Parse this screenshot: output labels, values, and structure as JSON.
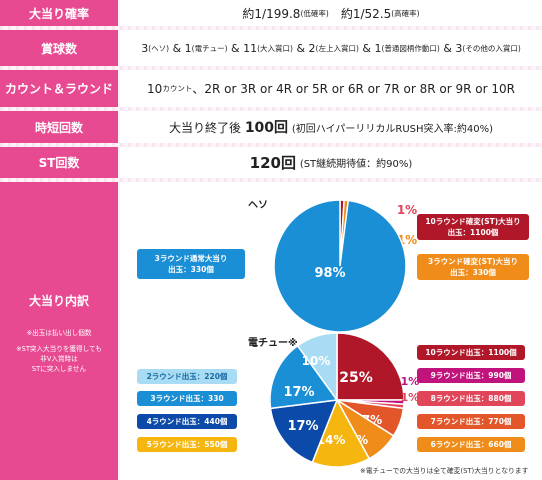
{
  "rows": [
    {
      "label": "大当り確率",
      "low_value": "約1/199.8",
      "low_note": "(低確率)",
      "high_value": "約1/52.5",
      "high_note": "(高確率)"
    },
    {
      "label": "賞球数",
      "p1n": "3",
      "p1t": "(ヘソ)",
      "p2n": "1",
      "p2t": "(電チュー)",
      "p3n": "11",
      "p3t": "(大入賞口)",
      "p4n": "2",
      "p4t": "(左上入賞口)",
      "p5n": "1",
      "p5t": "(普通図柄作動口)",
      "p6n": "3",
      "p6t": "(その他の入賞口)"
    },
    {
      "label": "カウント＆ラウンド",
      "count_num": "10",
      "count_unit": "カウント",
      "rounds": "、2R or 3R or 4R or 5R or 6R or 7R or 8R or 9R or 10R"
    },
    {
      "label": "時短回数",
      "prefix": "大当り終了後",
      "count": "100回",
      "note": "(初回ハイパーリリカルRUSH突入率:約40%)"
    },
    {
      "label": "ST回数",
      "count": "120回",
      "note": "(ST継続期待値：約90%)"
    }
  ],
  "breakdown": {
    "title": "大当り内訳",
    "note1": "※出玉は払い出し個数",
    "note2a": "※ST突入大当りを獲得しても",
    "note2b": "非V入賞時は",
    "note2c": "STに突入しません",
    "footnote": "※電チューでの大当りは全て確変(ST)大当りとなります"
  },
  "chart_data": [
    {
      "type": "pie",
      "title": "ヘソ",
      "slices": [
        {
          "label": "3ラウンド通常大当り",
          "sub": "出玉：330個",
          "value": 98,
          "pct": "98%",
          "color": "#1a8fd6"
        },
        {
          "label": "3ラウンド確変(ST)大当り",
          "sub": "出玉：330個",
          "value": 1,
          "pct": "1%",
          "color": "#ef8c1a"
        },
        {
          "label": "10ラウンド確変(ST)大当り",
          "sub": "出玉：1100個",
          "value": 1,
          "pct": "1%",
          "color": "#b0182a"
        }
      ]
    },
    {
      "type": "pie",
      "title": "電チュー※",
      "slices": [
        {
          "label": "10ラウンド出玉：1100個",
          "value": 25,
          "pct": "25%",
          "color": "#b0182a"
        },
        {
          "label": "9ラウンド出玉：990個",
          "value": 1,
          "pct": "1%",
          "color": "#c0137c"
        },
        {
          "label": "8ラウンド出玉：880個",
          "value": 1,
          "pct": "1%",
          "color": "#e0455a"
        },
        {
          "label": "5ラウンド出玉：550個",
          "value": 14,
          "pct": "14%",
          "color": "#f5b60f"
        },
        {
          "label": "4ラウンド出玉：440個",
          "value": 17,
          "pct": "17%",
          "color": "#0b4aa8"
        },
        {
          "label": "3ラウンド出玉：330",
          "value": 17,
          "pct": "17%",
          "color": "#1a8fd6"
        },
        {
          "label": "2ラウンド出玉：220個",
          "value": 10,
          "pct": "10%",
          "color": "#a8dcf4"
        },
        {
          "label": "7ラウンド出玉：770個",
          "value": 7,
          "pct": "7%",
          "color": "#e2562a"
        },
        {
          "label": "6ラウンド出玉：660個",
          "value": 8,
          "pct": "8%",
          "color": "#ef8c1a"
        }
      ]
    }
  ]
}
